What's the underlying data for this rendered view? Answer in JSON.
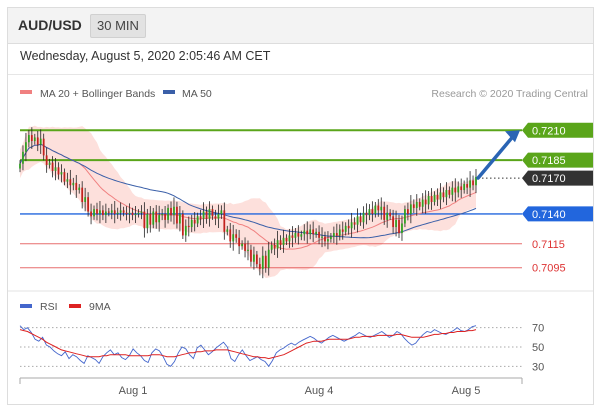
{
  "header": {
    "symbol": "AUD/USD",
    "timeframe": "30 MIN",
    "datetime": "Wednesday, August 5, 2020 2:05:46 AM CET"
  },
  "legend": {
    "ma20": "MA 20 + Bollinger Bands",
    "ma50": "MA 50",
    "credit": "Research © 2020 Trading Central",
    "rsi": "RSI",
    "ma9": "9MA"
  },
  "colors": {
    "ma20": "#f08080",
    "ma50": "#3a5fa8",
    "band": "#fde0dc",
    "green": "#5aa51a",
    "blue": "#2266dd",
    "red": "#dd3333",
    "dark": "#333333",
    "arrow": "#2a64b4",
    "rsi": "#4466cc",
    "ma9": "#dd2222"
  },
  "chart_data": [
    {
      "type": "candlestick",
      "title": "AUD/USD",
      "ylim": [
        0.7078,
        0.7232
      ],
      "x_ticks": [
        "Aug 1",
        "Aug 4",
        "Aug 5"
      ],
      "levels": [
        {
          "value": 0.721,
          "label": "0.7210",
          "kind": "resistance"
        },
        {
          "value": 0.7185,
          "label": "0.7185",
          "kind": "resistance"
        },
        {
          "value": 0.717,
          "label": "0.7170",
          "kind": "current"
        },
        {
          "value": 0.714,
          "label": "0.7140",
          "kind": "pivot"
        },
        {
          "value": 0.7115,
          "label": "0.7115",
          "kind": "support"
        },
        {
          "value": 0.7095,
          "label": "0.7095",
          "kind": "support"
        }
      ],
      "closes": [
        0.7182,
        0.7192,
        0.72,
        0.7206,
        0.7201,
        0.7204,
        0.7198,
        0.7203,
        0.7189,
        0.7181,
        0.7183,
        0.7176,
        0.7179,
        0.7173,
        0.7175,
        0.7167,
        0.7169,
        0.7164,
        0.7166,
        0.716,
        0.7162,
        0.715,
        0.7154,
        0.7142,
        0.7138,
        0.7144,
        0.714,
        0.7143,
        0.7139,
        0.7142,
        0.7141,
        0.7143,
        0.714,
        0.7141,
        0.7143,
        0.7141,
        0.714,
        0.7141,
        0.7139,
        0.714,
        0.7141,
        0.7142,
        0.7128,
        0.714,
        0.7131,
        0.7142,
        0.7133,
        0.7139,
        0.714,
        0.7135,
        0.7145,
        0.7139,
        0.7146,
        0.7132,
        0.714,
        0.7122,
        0.713,
        0.7129,
        0.7135,
        0.7132,
        0.7138,
        0.7136,
        0.7142,
        0.7136,
        0.7144,
        0.7138,
        0.7136,
        0.714,
        0.7143,
        0.7125,
        0.7127,
        0.7117,
        0.7123,
        0.712,
        0.7113,
        0.7115,
        0.7109,
        0.711,
        0.71,
        0.7106,
        0.7098,
        0.7094,
        0.7105,
        0.7095,
        0.711,
        0.7114,
        0.7111,
        0.7118,
        0.7114,
        0.712,
        0.7117,
        0.7122,
        0.712,
        0.7124,
        0.7121,
        0.7123,
        0.7126,
        0.7123,
        0.7127,
        0.7123,
        0.7125,
        0.712,
        0.7121,
        0.7117,
        0.7119,
        0.7121,
        0.7124,
        0.7122,
        0.7127,
        0.7125,
        0.713,
        0.7128,
        0.7133,
        0.7131,
        0.7138,
        0.7133,
        0.7141,
        0.7139,
        0.7144,
        0.714,
        0.7147,
        0.7143,
        0.7146,
        0.7135,
        0.7141,
        0.7138,
        0.7129,
        0.7135,
        0.7124,
        0.7132,
        0.7144,
        0.714,
        0.7148,
        0.7145,
        0.715,
        0.7146,
        0.7152,
        0.7148,
        0.7155,
        0.715,
        0.7156,
        0.7152,
        0.7158,
        0.7154,
        0.716,
        0.7156,
        0.7162,
        0.7158,
        0.7163,
        0.716,
        0.7165,
        0.7162,
        0.7168,
        0.7164,
        0.7171
      ]
    },
    {
      "type": "line",
      "title": "RSI",
      "series_names": [
        "RSI",
        "9MA"
      ],
      "ylim": [
        20,
        80
      ],
      "y_ticks": [
        70,
        50,
        30
      ],
      "rsi": [
        72,
        68,
        70,
        65,
        58,
        56,
        60,
        52,
        50,
        46,
        43,
        41,
        45,
        38,
        42,
        40,
        36,
        33,
        41,
        39,
        37,
        33,
        40,
        44,
        47,
        42,
        44,
        39,
        37,
        41,
        48,
        44,
        41,
        36,
        34,
        44,
        48,
        46,
        40,
        32,
        30,
        35,
        44,
        50,
        48,
        42,
        38,
        49,
        52,
        47,
        42,
        45,
        49,
        52,
        55,
        50,
        38,
        35,
        42,
        47,
        41,
        36,
        38,
        40,
        37,
        35,
        30,
        36,
        44,
        47,
        49,
        52,
        54,
        52,
        55,
        57,
        59,
        61,
        59,
        56,
        54,
        57,
        60,
        62,
        60,
        58,
        56,
        58,
        60,
        62,
        65,
        63,
        61,
        60,
        62,
        64,
        66,
        63,
        60,
        62,
        66,
        64,
        59,
        55,
        52,
        54,
        59,
        63,
        66,
        65,
        68,
        66,
        64,
        63,
        65,
        67,
        70,
        67,
        66,
        68,
        71,
        72
      ],
      "ma9": [
        68,
        67,
        66,
        64,
        62,
        60,
        58,
        55,
        53,
        51,
        49,
        47,
        46,
        45,
        44,
        43,
        42,
        41,
        40,
        40,
        40,
        40,
        41,
        41,
        42,
        42,
        42,
        42,
        42,
        41,
        41,
        41,
        41,
        41,
        41,
        42,
        42,
        42,
        41,
        40,
        40,
        40,
        41,
        42,
        43,
        44,
        44,
        45,
        45,
        46,
        46,
        46,
        47,
        47,
        47,
        47,
        46,
        45,
        44,
        43,
        42,
        41,
        40,
        40,
        39,
        39,
        38,
        39,
        40,
        41,
        42,
        44,
        46,
        48,
        50,
        52,
        54,
        55,
        56,
        56,
        56,
        57,
        58,
        58,
        58,
        58,
        58,
        58,
        59,
        60,
        60,
        61,
        61,
        61,
        61,
        62,
        62,
        62,
        62,
        62,
        63,
        63,
        62,
        61,
        60,
        60,
        60,
        60,
        61,
        62,
        63,
        63,
        64,
        64,
        65,
        65,
        66,
        66,
        66,
        67,
        67,
        68
      ]
    }
  ]
}
